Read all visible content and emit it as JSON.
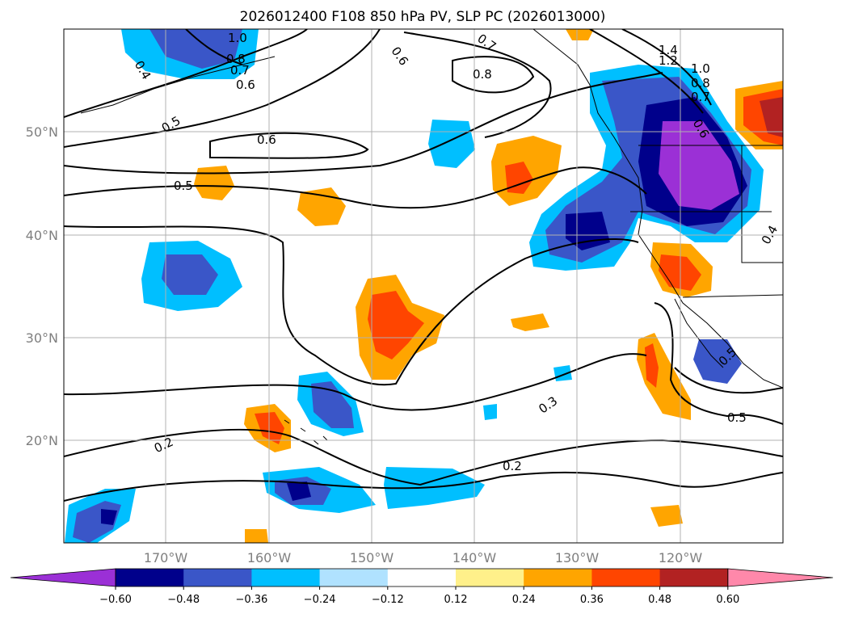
{
  "title": "2026012400 F108 850 hPa PV, SLP PC (2026013000)",
  "lat_ticks": [
    "50°N",
    "40°N",
    "30°N",
    "20°N"
  ],
  "lon_ticks": [
    "170°W",
    "160°W",
    "150°W",
    "140°W",
    "130°W",
    "120°W"
  ],
  "colorbar": {
    "ticks": [
      "−0.60",
      "−0.48",
      "−0.36",
      "−0.24",
      "−0.12",
      "0.12",
      "0.24",
      "0.36",
      "0.48",
      "0.60"
    ],
    "colors": [
      "#9b30d6",
      "#00008b",
      "#3a56c8",
      "#00bfff",
      "#b0e2ff",
      "#ffffff",
      "#fff08a",
      "#ffa500",
      "#ff4500",
      "#b22222",
      "#ff88aa"
    ]
  },
  "contour_labels": [
    "1.0",
    "0.8",
    "0.7",
    "0.6",
    "0.4",
    "0.5",
    "0.6",
    "0.5",
    "0.6",
    "0.7",
    "0.8",
    "1.4",
    "1.2",
    "1.0",
    "0.8",
    "0.7",
    "0.6",
    "0.4",
    "0.2",
    "0.3",
    "0.2",
    "0.5",
    "0.5"
  ]
}
